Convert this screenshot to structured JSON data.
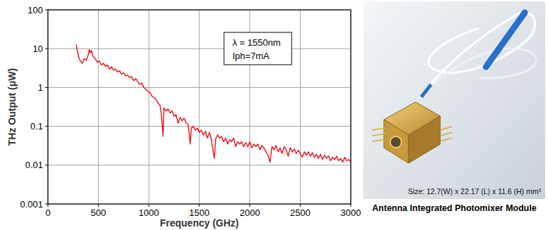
{
  "chart_data": {
    "type": "line",
    "x_label": "Frequency (GHz)",
    "y_label": "THz Output (μW)",
    "annotations": [
      "λ = 1550nm",
      "Iph=7mA"
    ],
    "log": "y",
    "grid": true,
    "xlim": [
      0,
      3000
    ],
    "xticks": [
      0,
      500,
      1000,
      1500,
      2000,
      2500,
      3000
    ],
    "ylim": [
      0.001,
      100
    ],
    "yticks": [
      0.001,
      0.01,
      0.1,
      1,
      10,
      100
    ],
    "x": [
      280,
      290,
      300,
      310,
      320,
      340,
      360,
      380,
      400,
      410,
      420,
      430,
      450,
      470,
      490,
      510,
      530,
      550,
      570,
      590,
      610,
      630,
      650,
      670,
      690,
      710,
      730,
      750,
      770,
      790,
      810,
      830,
      850,
      870,
      890,
      910,
      930,
      950,
      970,
      990,
      1010,
      1030,
      1050,
      1070,
      1090,
      1110,
      1125,
      1140,
      1150,
      1170,
      1190,
      1210,
      1230,
      1250,
      1270,
      1290,
      1310,
      1330,
      1350,
      1370,
      1390,
      1410,
      1420,
      1440,
      1460,
      1480,
      1500,
      1520,
      1540,
      1560,
      1580,
      1600,
      1620,
      1640,
      1650,
      1660,
      1680,
      1700,
      1720,
      1740,
      1760,
      1780,
      1800,
      1820,
      1840,
      1860,
      1880,
      1900,
      1920,
      1940,
      1960,
      1980,
      2000,
      2020,
      2040,
      2060,
      2080,
      2100,
      2120,
      2140,
      2160,
      2180,
      2200,
      2220,
      2240,
      2260,
      2280,
      2300,
      2320,
      2340,
      2360,
      2380,
      2400,
      2420,
      2440,
      2460,
      2480,
      2500,
      2520,
      2540,
      2560,
      2580,
      2600,
      2620,
      2640,
      2660,
      2680,
      2700,
      2720,
      2740,
      2760,
      2780,
      2800,
      2820,
      2840,
      2860,
      2880,
      2900,
      2920,
      2940,
      2960,
      2980,
      3000
    ],
    "series": [
      {
        "name": "THz Output",
        "color": "#e8101a",
        "line_style": "solid",
        "values": [
          13,
          9,
          7,
          5.5,
          5,
          4.2,
          5.5,
          5,
          7,
          9.5,
          8,
          9,
          6,
          5.5,
          4.5,
          4.8,
          3.8,
          4.2,
          3.5,
          3.8,
          3.0,
          3.4,
          2.8,
          3.0,
          2.5,
          2.7,
          2.2,
          2.4,
          2.0,
          2.1,
          1.8,
          1.9,
          1.5,
          1.7,
          1.4,
          1.2,
          1.3,
          1.0,
          0.9,
          0.8,
          0.75,
          0.6,
          0.55,
          0.5,
          0.4,
          0.35,
          0.2,
          0.055,
          0.3,
          0.25,
          0.28,
          0.22,
          0.25,
          0.18,
          0.2,
          0.12,
          0.17,
          0.14,
          0.16,
          0.12,
          0.11,
          0.035,
          0.09,
          0.1,
          0.08,
          0.09,
          0.07,
          0.08,
          0.06,
          0.075,
          0.05,
          0.07,
          0.045,
          0.02,
          0.015,
          0.045,
          0.06,
          0.05,
          0.055,
          0.04,
          0.05,
          0.035,
          0.045,
          0.04,
          0.05,
          0.03,
          0.04,
          0.035,
          0.04,
          0.03,
          0.038,
          0.03,
          0.04,
          0.028,
          0.035,
          0.03,
          0.035,
          0.025,
          0.032,
          0.028,
          0.022,
          0.018,
          0.012,
          0.03,
          0.025,
          0.032,
          0.022,
          0.028,
          0.02,
          0.03,
          0.025,
          0.017,
          0.028,
          0.022,
          0.026,
          0.02,
          0.024,
          0.02,
          0.016,
          0.022,
          0.018,
          0.022,
          0.017,
          0.021,
          0.016,
          0.019,
          0.015,
          0.019,
          0.014,
          0.018,
          0.015,
          0.017,
          0.013,
          0.016,
          0.014,
          0.017,
          0.013,
          0.015,
          0.012,
          0.016,
          0.013,
          0.014,
          0.012
        ]
      }
    ]
  },
  "photo": {
    "size_label": "Size: 12.7(W) x 22.17 (L) x 11.6 (H) mm³",
    "caption": "Antenna Integrated Photomixer Module"
  }
}
